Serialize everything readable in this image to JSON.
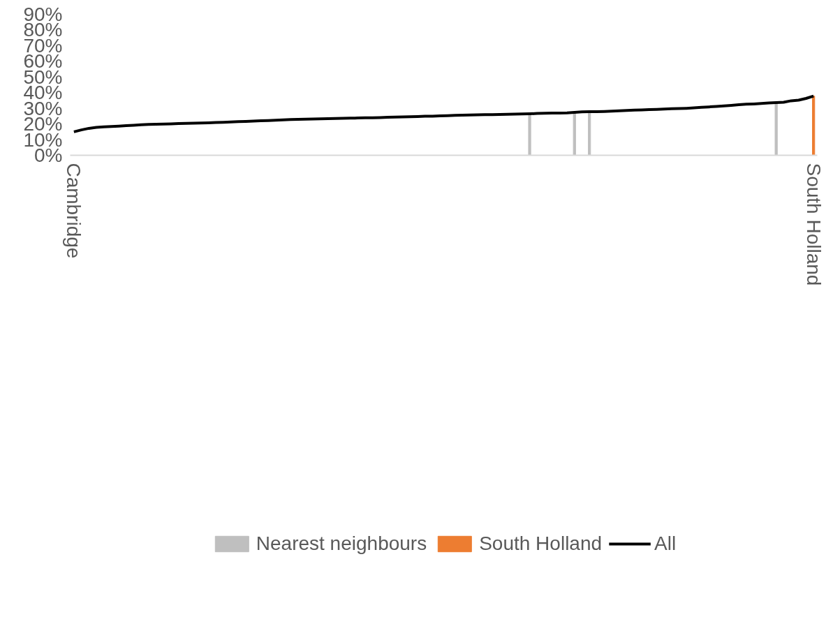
{
  "chart_data": {
    "type": "bar",
    "categories": [
      "Cambridge",
      null,
      null,
      null,
      null,
      null,
      null,
      null,
      null,
      null,
      null,
      null,
      null,
      null,
      null,
      null,
      null,
      null,
      null,
      null,
      null,
      null,
      null,
      null,
      null,
      null,
      null,
      null,
      null,
      null,
      null,
      null,
      null,
      null,
      null,
      null,
      null,
      null,
      null,
      null,
      null,
      null,
      null,
      null,
      null,
      null,
      null,
      null,
      null,
      null,
      null,
      null,
      null,
      null,
      null,
      null,
      null,
      null,
      null,
      null,
      null,
      null,
      null,
      null,
      null,
      null,
      null,
      null,
      null,
      null,
      null,
      null,
      null,
      null,
      null,
      null,
      null,
      null,
      null,
      null,
      null,
      null,
      null,
      null,
      null,
      null,
      null,
      null,
      null,
      null,
      null,
      null,
      null,
      null,
      null,
      null,
      null,
      null,
      null,
      "South Holland"
    ],
    "series": [
      {
        "name": "Nearest neighbours",
        "color": "#bfbfbf",
        "values": [
          null,
          null,
          null,
          null,
          null,
          null,
          null,
          null,
          null,
          null,
          null,
          null,
          null,
          null,
          null,
          null,
          null,
          null,
          null,
          null,
          null,
          null,
          null,
          null,
          null,
          null,
          null,
          null,
          null,
          null,
          null,
          null,
          null,
          null,
          null,
          null,
          null,
          null,
          null,
          null,
          null,
          null,
          null,
          null,
          null,
          null,
          null,
          null,
          null,
          null,
          null,
          null,
          null,
          null,
          null,
          null,
          null,
          null,
          null,
          null,
          null,
          26.5,
          null,
          null,
          null,
          null,
          null,
          27.4,
          null,
          27.8,
          null,
          null,
          null,
          null,
          null,
          null,
          null,
          null,
          null,
          null,
          null,
          null,
          null,
          null,
          null,
          null,
          null,
          null,
          null,
          null,
          null,
          null,
          null,
          null,
          33.6,
          null,
          null,
          null,
          null,
          null
        ]
      },
      {
        "name": "South Holland",
        "color": "#ed7d31",
        "values": [
          null,
          null,
          null,
          null,
          null,
          null,
          null,
          null,
          null,
          null,
          null,
          null,
          null,
          null,
          null,
          null,
          null,
          null,
          null,
          null,
          null,
          null,
          null,
          null,
          null,
          null,
          null,
          null,
          null,
          null,
          null,
          null,
          null,
          null,
          null,
          null,
          null,
          null,
          null,
          null,
          null,
          null,
          null,
          null,
          null,
          null,
          null,
          null,
          null,
          null,
          null,
          null,
          null,
          null,
          null,
          null,
          null,
          null,
          null,
          null,
          null,
          null,
          null,
          null,
          null,
          null,
          null,
          null,
          null,
          null,
          null,
          null,
          null,
          null,
          null,
          null,
          null,
          null,
          null,
          null,
          null,
          null,
          null,
          null,
          null,
          null,
          null,
          null,
          null,
          null,
          null,
          null,
          null,
          null,
          null,
          null,
          null,
          null,
          null,
          37.8
        ]
      },
      {
        "name": "All",
        "type": "line",
        "color": "#000000",
        "values": [
          15.0,
          16.2,
          17.2,
          17.8,
          18.2,
          18.4,
          18.6,
          18.9,
          19.2,
          19.5,
          19.7,
          19.8,
          19.9,
          20.1,
          20.3,
          20.4,
          20.5,
          20.6,
          20.7,
          20.9,
          21.1,
          21.3,
          21.5,
          21.6,
          21.8,
          22.0,
          22.2,
          22.4,
          22.6,
          22.8,
          23.0,
          23.1,
          23.2,
          23.3,
          23.4,
          23.5,
          23.6,
          23.7,
          23.8,
          23.9,
          24.0,
          24.1,
          24.3,
          24.4,
          24.5,
          24.6,
          24.7,
          24.9,
          25.0,
          25.2,
          25.3,
          25.5,
          25.6,
          25.7,
          25.8,
          25.9,
          26.0,
          26.1,
          26.2,
          26.3,
          26.4,
          26.5,
          26.7,
          26.8,
          26.9,
          27.0,
          27.1,
          27.4,
          27.7,
          27.8,
          27.9,
          28.0,
          28.2,
          28.4,
          28.6,
          28.8,
          29.0,
          29.2,
          29.3,
          29.5,
          29.7,
          29.8,
          30.0,
          30.3,
          30.6,
          30.9,
          31.2,
          31.5,
          31.9,
          32.3,
          32.6,
          32.8,
          33.1,
          33.4,
          33.6,
          33.9,
          34.8,
          35.2,
          36.3,
          37.8
        ]
      }
    ],
    "ylim": [
      0,
      90
    ],
    "yticks": [
      {
        "value": 0,
        "label": "0%"
      },
      {
        "value": 10,
        "label": "10%"
      },
      {
        "value": 20,
        "label": "20%"
      },
      {
        "value": 30,
        "label": "30%"
      },
      {
        "value": 40,
        "label": "40%"
      },
      {
        "value": 50,
        "label": "50%"
      },
      {
        "value": 60,
        "label": "60%"
      },
      {
        "value": 70,
        "label": "70%"
      },
      {
        "value": 80,
        "label": "80%"
      },
      {
        "value": 90,
        "label": "90%"
      }
    ],
    "grid": false,
    "legend": "bottom"
  }
}
